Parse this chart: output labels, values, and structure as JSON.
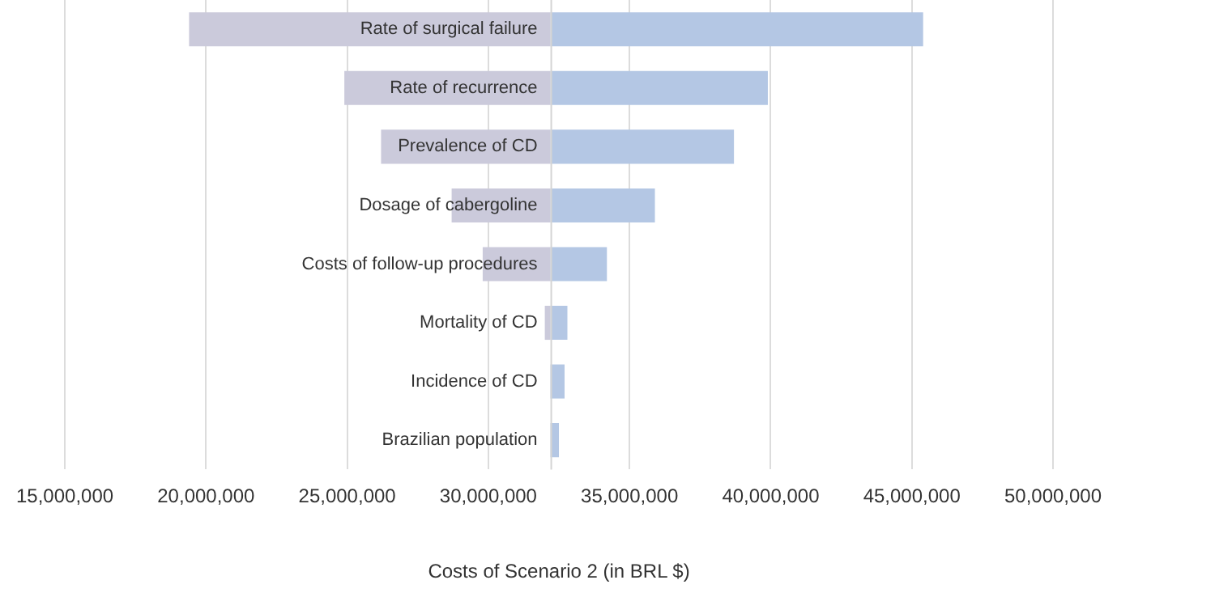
{
  "chart_data": {
    "type": "bar",
    "orientation": "horizontal",
    "xlabel": "Costs of Scenario 2 (in BRL $)",
    "categories": [
      "Rate of surgical failure",
      "Rate of recurrence",
      "Prevalence of CD",
      "Dosage of cabergoline",
      "Costs of follow-up procedures",
      "Mortality of CD",
      "Incidence of CD",
      "Brazilian population"
    ],
    "series": [
      {
        "color": "#cbcadb",
        "base": [
          32200000,
          32200000,
          32200000,
          32200000,
          32200000,
          32200000,
          null,
          null
        ],
        "values": [
          -12800000,
          -7300000,
          -6000000,
          -3500000,
          -2400000,
          -200000,
          null,
          null
        ]
      },
      {
        "color": "#b4c7e4",
        "base": [
          32200000,
          32200000,
          32200000,
          32200000,
          32200000,
          32200000,
          32200000,
          32200000
        ],
        "values": [
          13200000,
          7700000,
          6500000,
          3700000,
          2000000,
          600000,
          500000,
          300000
        ]
      }
    ],
    "xlim": [
      15000000,
      50000000
    ],
    "xticks": [
      {
        "value": 15000000,
        "label": "15,000,000"
      },
      {
        "value": 20000000,
        "label": "20,000,000"
      },
      {
        "value": 25000000,
        "label": "25,000,000"
      },
      {
        "value": 30000000,
        "label": "30,000,000"
      },
      {
        "value": 35000000,
        "label": "35,000,000"
      },
      {
        "value": 40000000,
        "label": "40,000,000"
      },
      {
        "value": 45000000,
        "label": "45,000,000"
      },
      {
        "value": 50000000,
        "label": "50,000,000"
      }
    ],
    "grid": "x"
  }
}
